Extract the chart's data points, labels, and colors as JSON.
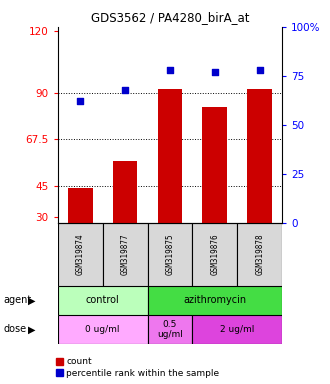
{
  "title": "GDS3562 / PA4280_birA_at",
  "samples": [
    "GSM319874",
    "GSM319877",
    "GSM319875",
    "GSM319876",
    "GSM319878"
  ],
  "bar_values": [
    44,
    57,
    92,
    83,
    92
  ],
  "scatter_values": [
    62,
    68,
    78,
    77,
    78
  ],
  "left_yticks": [
    30,
    45,
    67.5,
    90,
    120
  ],
  "left_ylim": [
    27,
    122
  ],
  "right_yticks": [
    0,
    25,
    50,
    75,
    100
  ],
  "bar_color": "#cc0000",
  "scatter_color": "#0000cc",
  "agent_labels": [
    {
      "label": "control",
      "start": 0,
      "end": 1,
      "color": "#bbffbb"
    },
    {
      "label": "azithromycin",
      "start": 2,
      "end": 4,
      "color": "#44dd44"
    }
  ],
  "dose_labels": [
    {
      "label": "0 ug/ml",
      "start": 0,
      "end": 1,
      "color": "#ffaaff"
    },
    {
      "label": "0.5\nug/ml",
      "start": 2,
      "end": 2,
      "color": "#ee77ee"
    },
    {
      "label": "2 ug/ml",
      "start": 3,
      "end": 4,
      "color": "#dd44dd"
    }
  ],
  "legend_count_label": "count",
  "legend_percentile_label": "percentile rank within the sample",
  "agent_row_label": "agent",
  "dose_row_label": "dose",
  "grid_lines": [
    45,
    67.5,
    90
  ]
}
